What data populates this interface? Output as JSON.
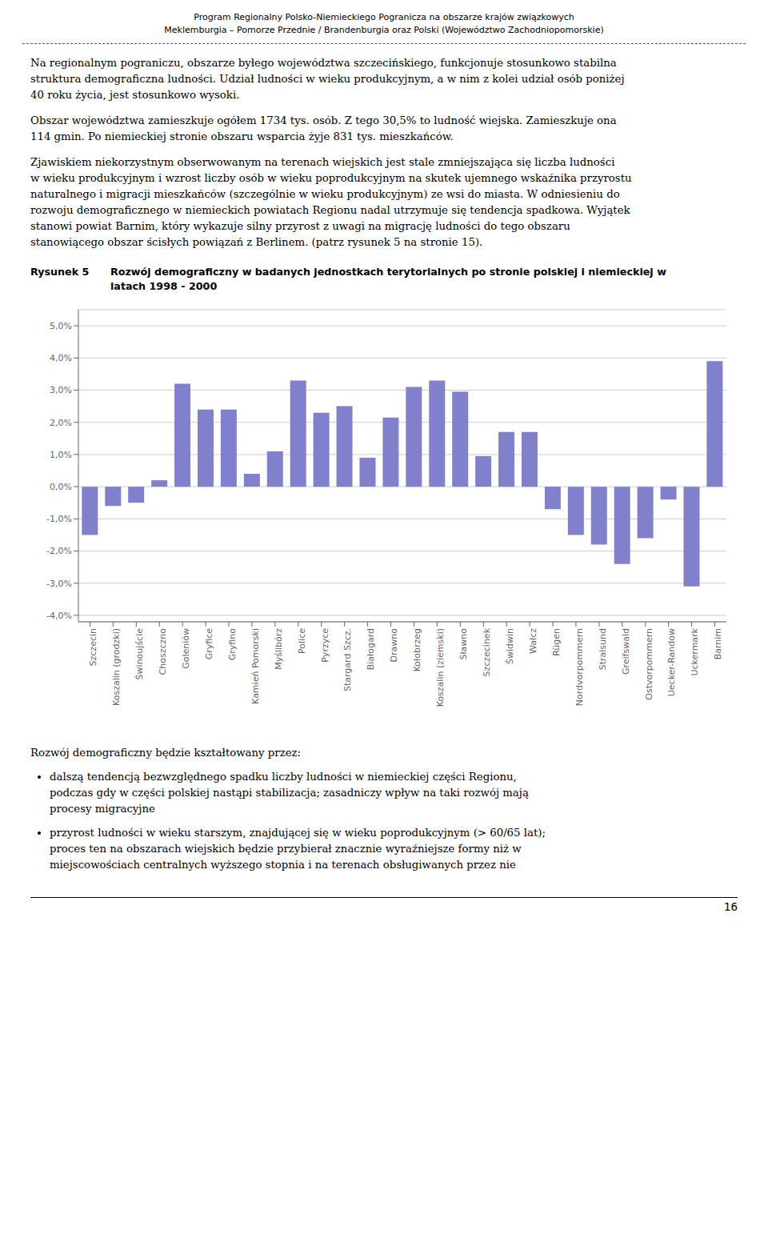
{
  "chart_data": {
    "type": "bar",
    "title": "Rysunek 5",
    "subtitle": "Rozwój demograficzny w badanych jednostkach terytorialnych po stronie polskiej i niemieckiej w\nlatach 1998 - 2000",
    "categories": [
      "Szczecin",
      "Koszalin (grodzki)",
      "Świnoujście",
      "Choszczno",
      "Goleniów",
      "Gryfice",
      "Gryfino",
      "Kamień Pomorski",
      "Myślibórz",
      "Police",
      "Pyrzyce",
      "Stargard Szcz.",
      "Białogard",
      "Drawno",
      "Kołobrzeg",
      "Koszalin (ziemski)",
      "Sławno",
      "Szczecinek",
      "Świdwin",
      "Wałcz",
      "Rügen",
      "Nordvorpommern",
      "Stralsund",
      "Greifswald",
      "Ostvorpommern",
      "Uecker-Randow",
      "Uckermark",
      "Barnim"
    ],
    "values": [
      -1.5,
      -0.6,
      -0.5,
      0.2,
      3.2,
      2.4,
      2.4,
      0.4,
      1.1,
      3.3,
      2.3,
      2.5,
      0.9,
      2.15,
      3.1,
      3.3,
      2.95,
      0.95,
      1.7,
      1.7,
      -0.7,
      -1.5,
      -1.8,
      -2.4,
      -1.6,
      -0.4,
      -3.1,
      3.9
    ],
    "color": "#8080cc",
    "ylim": [
      -4.2,
      5.5
    ],
    "yticks": [
      {
        "value": -4.0,
        "label": "-4,0%"
      },
      {
        "value": -3.0,
        "label": "-3,0%"
      },
      {
        "value": -2.0,
        "label": "-2,0%"
      },
      {
        "value": -1.0,
        "label": "-1,0%"
      },
      {
        "value": 0.0,
        "label": "0,0%"
      },
      {
        "value": 1.0,
        "label": "1,0%"
      },
      {
        "value": 2.0,
        "label": "2,0%"
      },
      {
        "value": 3.0,
        "label": "3,0%"
      },
      {
        "value": 4.0,
        "label": "4,0%"
      },
      {
        "value": 5.0,
        "label": "5,0%"
      }
    ],
    "grid": true,
    "annotations": {
      "header": [
        "Program Regionalny Polsko-Niemieckiego Pogranicza na obszarze krajów związkowych",
        "Meklemburgia – Pomorze Przednie / Brandenburgia oraz Polski (Województwo Zachodniopomorskie)"
      ],
      "body": [
        [
          "Na regionalnym pograniczu, obszarze byłego województwa szczecińskiego, funkcjonuje stosunkowo stabilna",
          "struktura demograficzna ludności. Udział ludności w wieku produkcyjnym, a w nim z kolei udział osób poniżej",
          "40 roku życia, jest stosunkowo wysoki."
        ],
        [
          "Obszar województwa zamieszkuje ogółem 1734 tys. osób. Z tego 30,5% to ludność wiejska. Zamieszkuje ona",
          "114 gmin. Po niemieckiej stronie obszaru wsparcia żyje 831 tys. mieszkańców."
        ],
        [
          "Zjawiskiem niekorzystnym obserwowanym na terenach wiejskich jest stale zmniejszająca się liczba ludności",
          "w wieku produkcyjnym i wzrost liczby osób w wieku poprodukcyjnym na skutek ujemnego wskaźnika przyrostu",
          "naturalnego i migracji mieszkańców (szczególnie w wieku produkcyjnym) ze wsi do miasta. W odniesieniu do",
          "rozwoju demograficznego w niemieckich powiatach Regionu nadal utrzymuje się tendencja spadkowa. Wyjątek",
          "stanowi powiat Barnim, który wykazuje silny przyrost z uwagi na migrację ludności do tego obszaru",
          "stanowiącego obszar ścisłych powiązań z Berlinem. (patrz rysunek 5 na stronie 15)."
        ]
      ],
      "footer": "Rozwój demograficzny będzie kształtowany przez:",
      "bullets": [
        [
          "dalszą tendencją bezwzględnego spadku liczby ludności w niemieckiej części Regionu,",
          "podczas gdy w części polskiej nastąpi stabilizacja; zasadniczy wpływ na taki rozwój mają",
          "procesy migracyjne"
        ],
        [
          "przyrost ludności w wieku starszym, znajdującej się w wieku poprodukcyjnym (> 60/65 lat);",
          "proces ten na obszarach wiejskich będzie przybierał znacznie wyraźniejsze formy niż w",
          "miejscowościach centralnych wyższego stopnia i na terenach obsługiwanych przez nie"
        ]
      ],
      "page_number": "16"
    }
  }
}
